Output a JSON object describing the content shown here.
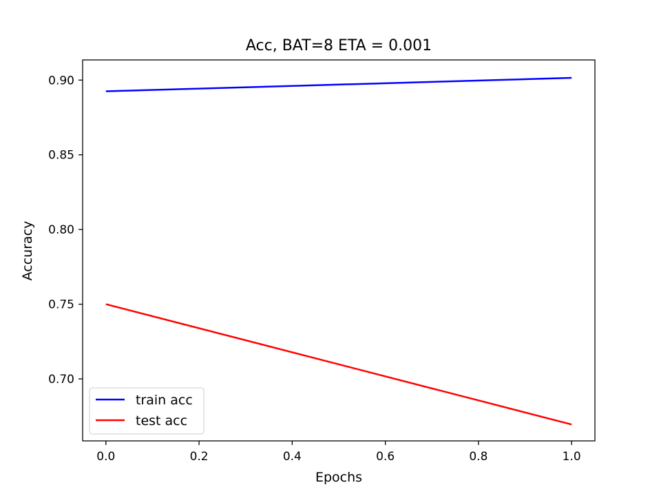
{
  "chart_data": {
    "type": "line",
    "title": "Acc, BAT=8 ETA = 0.001",
    "xlabel": "Epochs",
    "ylabel": "Accuracy",
    "xlim": [
      -0.05,
      1.05
    ],
    "ylim": [
      0.6585,
      0.9135
    ],
    "xticks": [
      0.0,
      0.2,
      0.4,
      0.6,
      0.8,
      1.0
    ],
    "xtick_labels": [
      "0.0",
      "0.2",
      "0.4",
      "0.6",
      "0.8",
      "1.0"
    ],
    "yticks": [
      0.7,
      0.75,
      0.8,
      0.85,
      0.9
    ],
    "ytick_labels": [
      "0.70",
      "0.75",
      "0.80",
      "0.85",
      "0.90"
    ],
    "grid": false,
    "legend_position": "lower-left",
    "series": [
      {
        "name": "train acc",
        "color": "#0000ff",
        "x": [
          0,
          1
        ],
        "y": [
          0.8925,
          0.9015
        ]
      },
      {
        "name": "test acc",
        "color": "#ff0000",
        "x": [
          0,
          1
        ],
        "y": [
          0.75,
          0.6695
        ]
      }
    ]
  }
}
